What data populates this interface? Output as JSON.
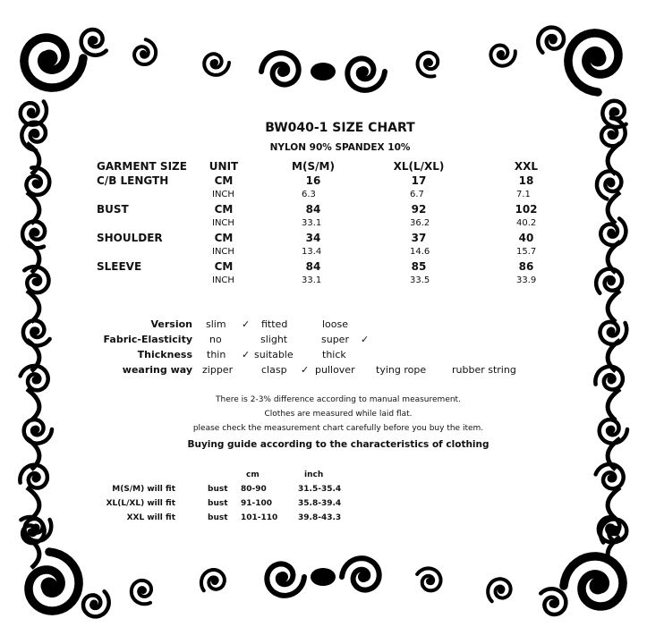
{
  "title": "BW040-1 SIZE CHART",
  "material": "NYLON 90%  SPANDEX 10%",
  "size_table": {
    "headers": [
      "GARMENT SIZE",
      "UNIT",
      "M(S/M)",
      "XL(L/XL)",
      "XXL"
    ],
    "rows": [
      {
        "label": "C/B LENGTH",
        "cm_unit": "CM",
        "cm": [
          "16",
          "17",
          "18"
        ],
        "inch_unit": "INCH",
        "inch": [
          "6.3",
          "6.7",
          "7.1"
        ]
      },
      {
        "label": "BUST",
        "cm_unit": "CM",
        "cm": [
          "84",
          "92",
          "102"
        ],
        "inch_unit": "INCH",
        "inch": [
          "33.1",
          "36.2",
          "40.2"
        ]
      },
      {
        "label": "SHOULDER",
        "cm_unit": "CM",
        "cm": [
          "34",
          "37",
          "40"
        ],
        "inch_unit": "INCH",
        "inch": [
          "13.4",
          "14.6",
          "15.7"
        ]
      },
      {
        "label": "SLEEVE",
        "cm_unit": "CM",
        "cm": [
          "84",
          "85",
          "86"
        ],
        "inch_unit": "INCH",
        "inch": [
          "33.1",
          "33.5",
          "33.9"
        ]
      }
    ]
  },
  "characteristics": {
    "check": "✓",
    "version": {
      "label": "Version",
      "options": [
        "slim",
        "fitted",
        "loose"
      ],
      "selected": "fitted"
    },
    "elasticity": {
      "label": "Fabric-Elasticity",
      "options": [
        "no",
        "slight",
        "super"
      ],
      "selected": "super"
    },
    "thickness": {
      "label": "Thickness",
      "options": [
        "thin",
        "suitable",
        "thick"
      ],
      "selected": "suitable"
    },
    "wearing": {
      "label": "wearing way",
      "options": [
        "zipper",
        "clasp",
        "pullover",
        "tying rope",
        "rubber string"
      ],
      "selected": "pullover"
    }
  },
  "notes": [
    "There is 2-3% difference according to manual measurement.",
    "Clothes are measured while laid flat.",
    "please check the measurement chart carefully before you buy the item."
  ],
  "buying_guide": {
    "title": "Buying guide according to the characteristics of clothing",
    "col_cm": "cm",
    "col_inch": "inch",
    "rows": [
      {
        "label": "M(S/M) will fit",
        "part": "bust",
        "cm": "80-90",
        "inch": "31.5-35.4"
      },
      {
        "label": "XL(L/XL) will fit",
        "part": "bust",
        "cm": "91-100",
        "inch": "35.8-39.4"
      },
      {
        "label": "XXL will fit",
        "part": "bust",
        "cm": "101-110",
        "inch": "39.8-43.3"
      }
    ]
  }
}
